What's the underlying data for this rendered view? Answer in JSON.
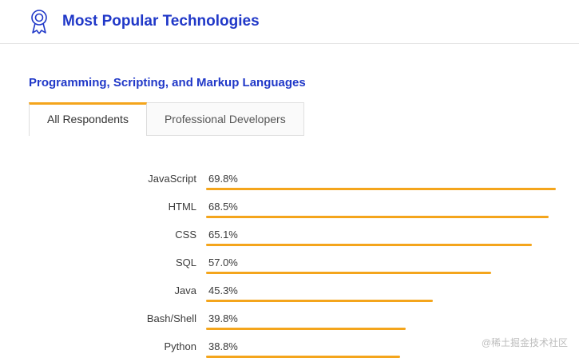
{
  "header": {
    "title": "Most Popular Technologies",
    "icon": "award-ribbon-icon"
  },
  "section": {
    "heading": "Programming, Scripting, and Markup Languages"
  },
  "tabs": [
    {
      "label": "All Respondents",
      "active": true
    },
    {
      "label": "Professional Developers",
      "active": false
    }
  ],
  "watermark": "@稀土掘金技术社区",
  "colors": {
    "accent_blue": "#2038c8",
    "bar_orange": "#f4a51c"
  },
  "chart_data": {
    "type": "bar",
    "orientation": "horizontal",
    "title": "Programming, Scripting, and Markup Languages",
    "categories": [
      "JavaScript",
      "HTML",
      "CSS",
      "SQL",
      "Java",
      "Bash/Shell",
      "Python"
    ],
    "values": [
      69.8,
      68.5,
      65.1,
      57.0,
      45.3,
      39.8,
      38.8
    ],
    "value_labels": [
      "69.8%",
      "68.5%",
      "65.1%",
      "57.0%",
      "45.3%",
      "39.8%",
      "38.8%"
    ],
    "xlabel": "",
    "ylabel": "",
    "xlim": [
      0,
      100
    ],
    "grid": false,
    "legend": "none"
  }
}
